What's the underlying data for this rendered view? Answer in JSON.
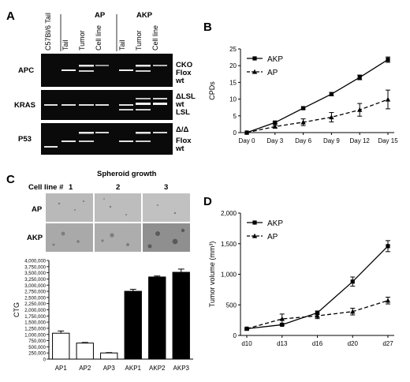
{
  "panels": {
    "A": {
      "letter": "A",
      "group_headers": [
        "AP",
        "AKP"
      ],
      "lane_labels": [
        "C57Bl/6 Tail",
        "Tail",
        "Tumor",
        "Cell line",
        "Tail",
        "Tumor",
        "Cell line"
      ],
      "gel_rows": [
        {
          "gene": "APC",
          "bands": [
            "CKO",
            "Flox",
            "wt"
          ]
        },
        {
          "gene": "KRAS",
          "bands": [
            "ΔLSL",
            "wt",
            "LSL"
          ]
        },
        {
          "gene": "P53",
          "bands": [
            "Δ/Δ",
            "Flox",
            "wt"
          ]
        }
      ]
    },
    "B": {
      "letter": "B"
    },
    "C": {
      "letter": "C",
      "title": "Spheroid growth",
      "cellline_label": "Cell line #",
      "col_labels": [
        "1",
        "2",
        "3"
      ],
      "row_labels": [
        "AP",
        "AKP"
      ]
    },
    "D": {
      "letter": "D"
    }
  },
  "chart_data": [
    {
      "id": "B",
      "type": "line",
      "ylabel": "CPDs",
      "xlabel": "",
      "categories": [
        "Day 0",
        "Day 3",
        "Day 6",
        "Day 9",
        "Day 12",
        "Day 15"
      ],
      "ylim": [
        0,
        25
      ],
      "yticks": [
        "0",
        "5",
        "10",
        "15",
        "20",
        "25"
      ],
      "legend": "top-left",
      "series": [
        {
          "name": "AKP",
          "marker": "square",
          "dash": false,
          "values": [
            0,
            3,
            7.3,
            11.5,
            16.5,
            21.8
          ],
          "errors": [
            0,
            0.3,
            0.3,
            0.5,
            0.7,
            0.8
          ]
        },
        {
          "name": "AP",
          "marker": "triangle",
          "dash": true,
          "values": [
            0,
            1.8,
            3.1,
            4.6,
            6.8,
            9.9
          ],
          "errors": [
            0,
            0.4,
            1,
            1.4,
            1.9,
            2.8
          ]
        }
      ]
    },
    {
      "id": "C",
      "type": "bar",
      "ylabel": "CTG",
      "xlabel": "",
      "categories": [
        "AP1",
        "AP2",
        "AP3",
        "AKP1",
        "AKP2",
        "AKP3"
      ],
      "values": [
        1050000,
        650000,
        250000,
        2750000,
        3330000,
        3520000
      ],
      "errors": [
        90000,
        25000,
        15000,
        80000,
        40000,
        130000
      ],
      "fills": [
        "#ffffff",
        "#ffffff",
        "#ffffff",
        "#000000",
        "#000000",
        "#000000"
      ],
      "ylim": [
        0,
        4000000
      ],
      "yticks": [
        "0",
        "250,000",
        "500,000",
        "750,000",
        "1,000,000",
        "1,250,000",
        "1,500,000",
        "1,750,000",
        "2,000,000",
        "2,250,000",
        "2,500,000",
        "2,750,000",
        "3,000,000",
        "3,250,000",
        "3,500,000",
        "3,750,000",
        "4,000,000"
      ]
    },
    {
      "id": "D",
      "type": "line",
      "ylabel": "Tumor volume (mm³)",
      "xlabel": "",
      "categories": [
        "d10",
        "d13",
        "d16",
        "d20",
        "d27"
      ],
      "ylim": [
        0,
        2000
      ],
      "yticks": [
        "0",
        "500",
        "1,000",
        "1,500",
        "2,000"
      ],
      "legend": "top-left",
      "series": [
        {
          "name": "AKP",
          "marker": "square",
          "dash": false,
          "values": [
            110,
            175,
            370,
            880,
            1460
          ],
          "errors": [
            10,
            15,
            30,
            75,
            90
          ]
        },
        {
          "name": "AP",
          "marker": "triangle",
          "dash": true,
          "values": [
            110,
            270,
            320,
            390,
            570
          ],
          "errors": [
            10,
            80,
            45,
            55,
            55
          ]
        }
      ]
    }
  ]
}
